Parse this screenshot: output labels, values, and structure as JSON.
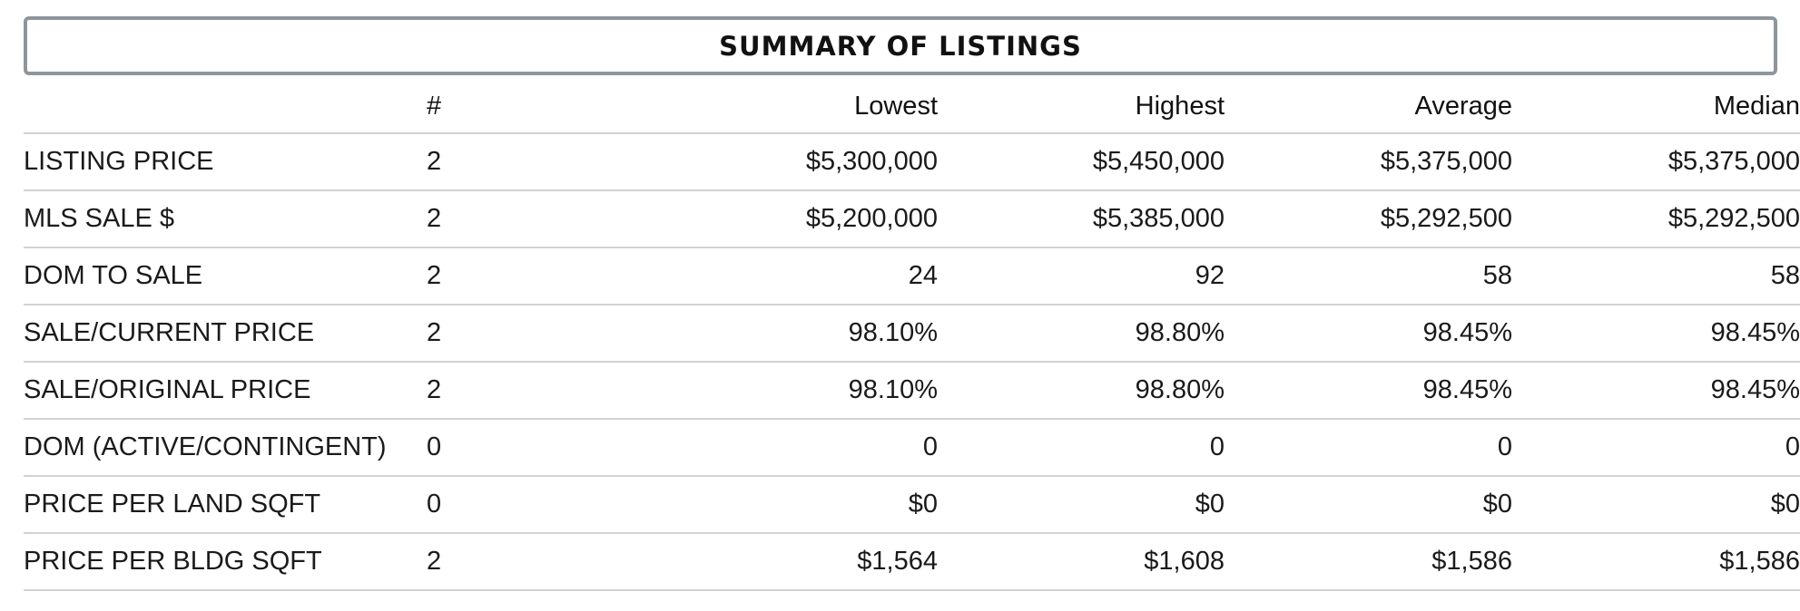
{
  "summary": {
    "title": "SUMMARY OF LISTINGS",
    "headers": [
      "#",
      "Lowest",
      "Highest",
      "Average",
      "Median"
    ],
    "rows": [
      {
        "label": "LISTING PRICE",
        "count": "2",
        "lowest": "$5,300,000",
        "highest": "$5,450,000",
        "average": "$5,375,000",
        "median": "$5,375,000"
      },
      {
        "label": "MLS SALE $",
        "count": "2",
        "lowest": "$5,200,000",
        "highest": "$5,385,000",
        "average": "$5,292,500",
        "median": "$5,292,500"
      },
      {
        "label": "DOM TO SALE",
        "count": "2",
        "lowest": "24",
        "highest": "92",
        "average": "58",
        "median": "58"
      },
      {
        "label": "SALE/CURRENT PRICE",
        "count": "2",
        "lowest": "98.10%",
        "highest": "98.80%",
        "average": "98.45%",
        "median": "98.45%"
      },
      {
        "label": "SALE/ORIGINAL PRICE",
        "count": "2",
        "lowest": "98.10%",
        "highest": "98.80%",
        "average": "98.45%",
        "median": "98.45%"
      },
      {
        "label": "DOM (ACTIVE/CONTINGENT)",
        "count": "0",
        "lowest": "0",
        "highest": "0",
        "average": "0",
        "median": "0"
      },
      {
        "label": "PRICE PER LAND SQFT",
        "count": "0",
        "lowest": "$0",
        "highest": "$0",
        "average": "$0",
        "median": "$0"
      },
      {
        "label": "PRICE PER BLDG SQFT",
        "count": "2",
        "lowest": "$1,564",
        "highest": "$1,608",
        "average": "$1,586",
        "median": "$1,586"
      }
    ]
  }
}
